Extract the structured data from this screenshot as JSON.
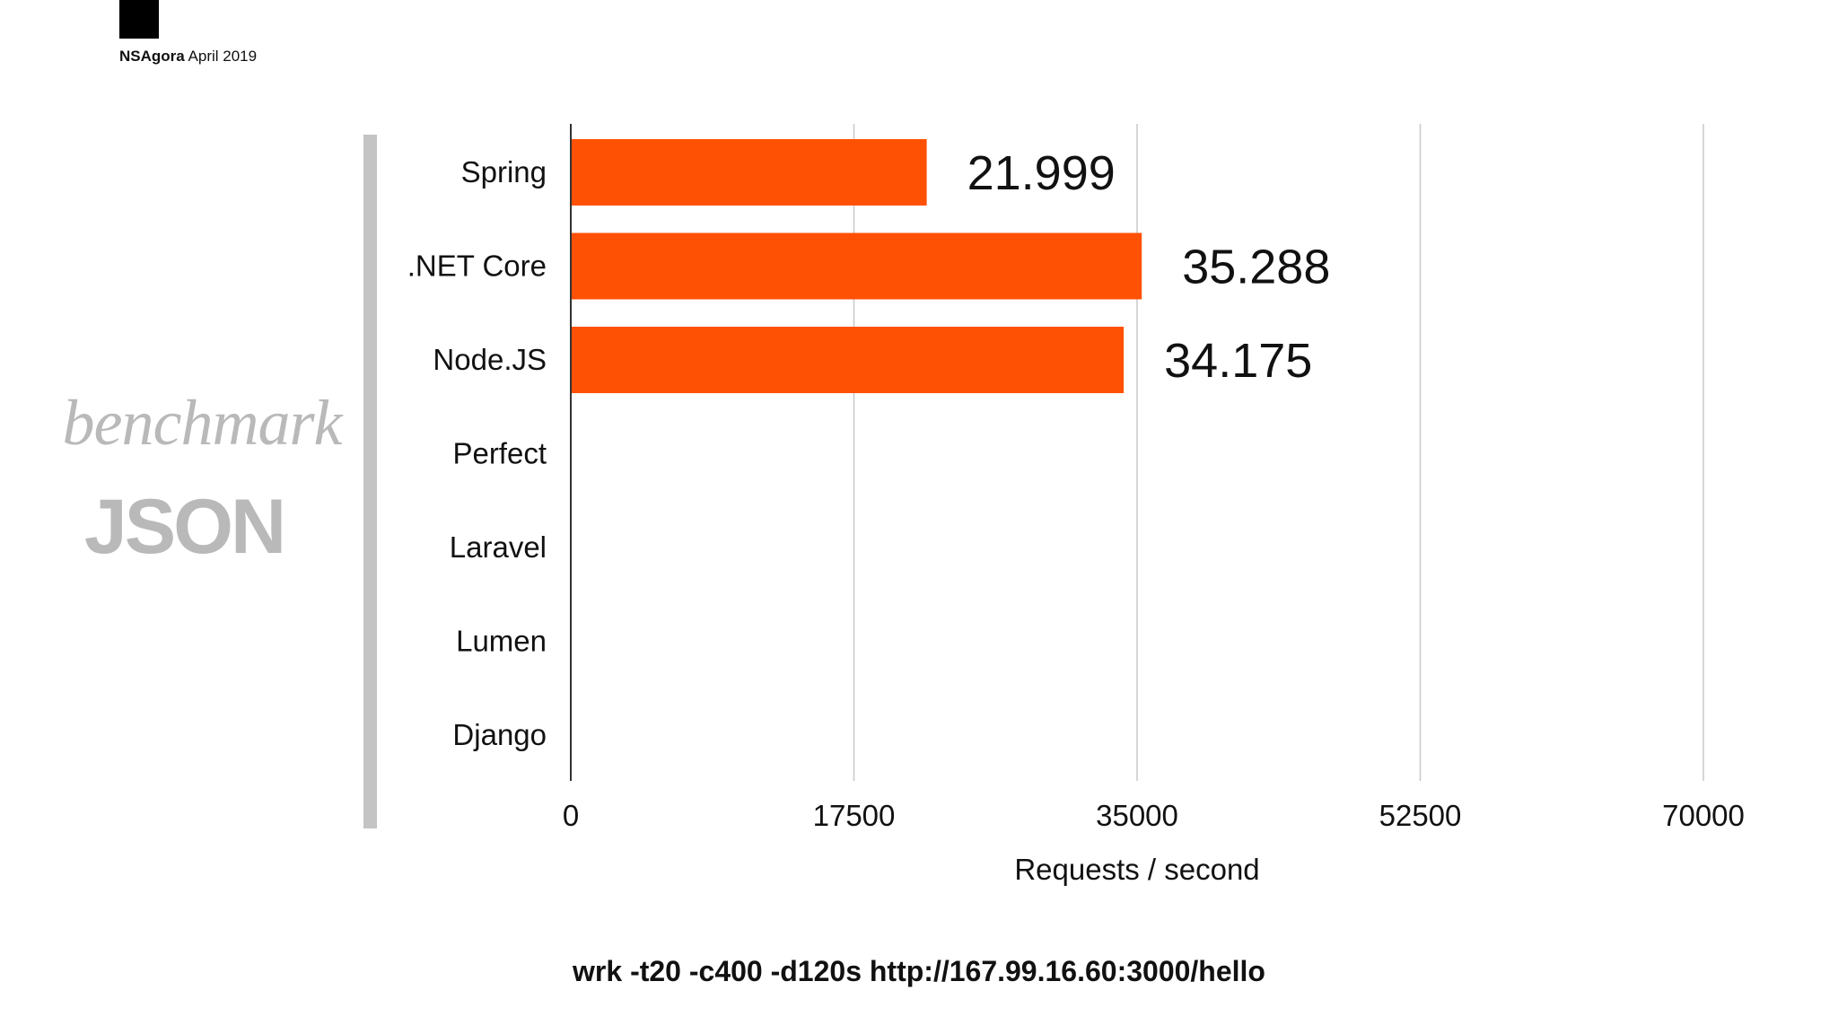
{
  "brand": {
    "name": "NSAgora",
    "date": "April 2019"
  },
  "side_title": {
    "line1": "benchmark",
    "line2": "JSON"
  },
  "command": "wrk -t20 -c400 -d120s http://167.99.16.60:3000/hello",
  "colors": {
    "bar": "#fe5104",
    "grid": "#c8c8c8",
    "axis": "#333333",
    "side_accent": "#c4c4c4"
  },
  "chart_data": {
    "type": "bar",
    "orientation": "horizontal",
    "categories": [
      "Spring",
      ".NET Core",
      "Node.JS",
      "Perfect",
      "Laravel",
      "Lumen",
      "Django"
    ],
    "values": [
      21999,
      35288,
      34175,
      null,
      null,
      null,
      null
    ],
    "data_labels": [
      "21.999",
      "35.288",
      "34.175",
      "",
      "",
      "",
      ""
    ],
    "xlabel": "Requests / second",
    "ylabel": "",
    "xlim": [
      0,
      70000
    ],
    "xticks": [
      0,
      17500,
      35000,
      52500,
      70000
    ],
    "grid": true
  }
}
